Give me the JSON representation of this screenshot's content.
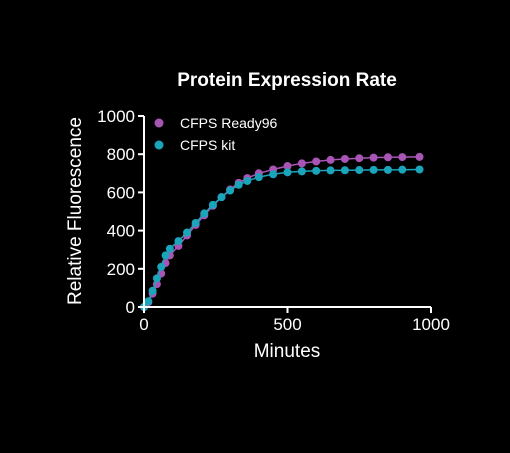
{
  "chart_data": {
    "type": "scatter",
    "title": "Protein Expression Rate",
    "xlabel": "Minutes",
    "ylabel": "Relative Fluorescence",
    "xlim": [
      0,
      1000
    ],
    "ylim": [
      0,
      1000
    ],
    "xticks": [
      0,
      500,
      1000
    ],
    "yticks": [
      0,
      200,
      400,
      600,
      800,
      1000
    ],
    "grid": false,
    "legend": "top-left",
    "series": [
      {
        "name": "CFPS Ready96",
        "color": "#a855b5",
        "x": [
          0,
          15,
          30,
          45,
          60,
          75,
          90,
          120,
          150,
          180,
          210,
          240,
          270,
          300,
          330,
          360,
          400,
          450,
          500,
          550,
          600,
          650,
          700,
          750,
          800,
          850,
          900,
          960
        ],
        "y": [
          0,
          25,
          70,
          120,
          175,
          230,
          270,
          320,
          375,
          430,
          480,
          530,
          575,
          615,
          650,
          675,
          700,
          720,
          738,
          752,
          762,
          770,
          775,
          779,
          782,
          784,
          785,
          786
        ]
      },
      {
        "name": "CFPS kit",
        "color": "#1aa5bb",
        "x": [
          0,
          15,
          30,
          45,
          60,
          75,
          90,
          120,
          150,
          180,
          210,
          240,
          270,
          300,
          330,
          360,
          400,
          450,
          500,
          550,
          600,
          650,
          700,
          750,
          800,
          850,
          900,
          960
        ],
        "y": [
          0,
          30,
          85,
          150,
          210,
          270,
          305,
          345,
          390,
          440,
          490,
          535,
          575,
          610,
          640,
          660,
          680,
          695,
          705,
          710,
          713,
          715,
          716,
          717,
          718,
          718,
          719,
          720
        ]
      }
    ]
  }
}
